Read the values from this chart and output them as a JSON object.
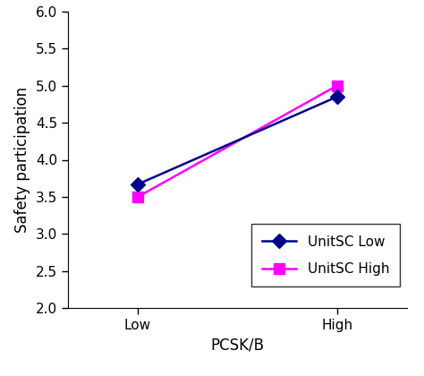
{
  "x_labels": [
    "Low",
    "High"
  ],
  "x_positions": [
    1,
    2
  ],
  "unitsc_low_values": [
    3.67,
    4.85
  ],
  "unitsc_high_values": [
    3.5,
    5.0
  ],
  "unitsc_low_color": "#00008B",
  "unitsc_high_color": "#FF00FF",
  "unitsc_low_marker": "D",
  "unitsc_high_marker": "s",
  "unitsc_low_label": "UnitSC Low",
  "unitsc_high_label": "UnitSC High",
  "xlabel": "PCSK/B",
  "ylabel": "Safety participation",
  "ylim": [
    2,
    6
  ],
  "yticks": [
    2,
    2.5,
    3,
    3.5,
    4,
    4.5,
    5,
    5.5,
    6
  ],
  "xlim": [
    0.65,
    2.35
  ],
  "linewidth": 1.8,
  "markersize": 8,
  "fontsize_labels": 12,
  "fontsize_ticks": 11,
  "fontsize_legend": 11
}
